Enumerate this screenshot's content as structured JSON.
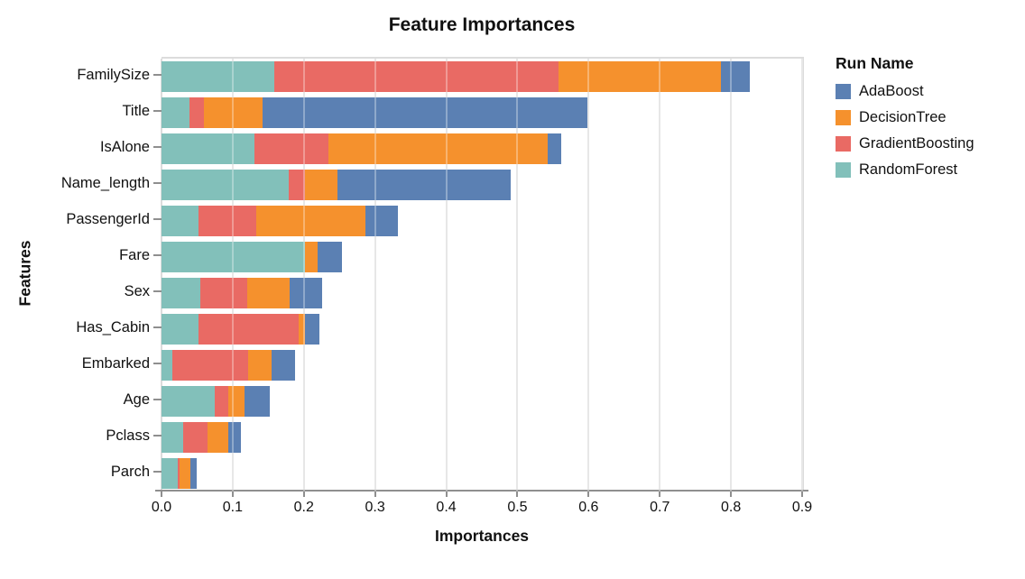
{
  "title": "Feature Importances",
  "x_axis": {
    "title": "Importances",
    "tick_labels": [
      "0.0",
      "0.1",
      "0.2",
      "0.3",
      "0.4",
      "0.5",
      "0.6",
      "0.7",
      "0.8",
      "0.9"
    ],
    "max": 0.9
  },
  "y_axis": {
    "title": "Features"
  },
  "legend": {
    "title": "Run Name",
    "entries": [
      {
        "label": "AdaBoost",
        "color": "#5b80b3"
      },
      {
        "label": "DecisionTree",
        "color": "#f5912d"
      },
      {
        "label": "GradientBoosting",
        "color": "#e96a64"
      },
      {
        "label": "RandomForest",
        "color": "#82c0ba"
      }
    ]
  },
  "chart_data": {
    "type": "bar",
    "orientation": "horizontal",
    "stacked": true,
    "title": "Feature Importances",
    "xlabel": "Importances",
    "ylabel": "Features",
    "xlim": [
      0,
      0.9
    ],
    "grid": true,
    "legend_position": "right",
    "categories": [
      "FamilySize",
      "Title",
      "IsAlone",
      "Name_length",
      "PassengerId",
      "Fare",
      "Sex",
      "Has_Cabin",
      "Embarked",
      "Age",
      "Pclass",
      "Parch"
    ],
    "stack_order_note": "series listed in left-to-right stacking order",
    "series": [
      {
        "name": "RandomForest",
        "color": "#82c0ba",
        "values": [
          0.159,
          0.039,
          0.131,
          0.179,
          0.052,
          0.202,
          0.055,
          0.052,
          0.015,
          0.075,
          0.03,
          0.023
        ]
      },
      {
        "name": "GradientBoosting",
        "color": "#e96a64",
        "values": [
          0.399,
          0.02,
          0.103,
          0.023,
          0.081,
          0.0,
          0.065,
          0.141,
          0.107,
          0.019,
          0.035,
          0.002
        ]
      },
      {
        "name": "DecisionTree",
        "color": "#f5912d",
        "values": [
          0.228,
          0.083,
          0.309,
          0.045,
          0.153,
          0.017,
          0.06,
          0.009,
          0.033,
          0.023,
          0.029,
          0.016
        ]
      },
      {
        "name": "AdaBoost",
        "color": "#5b80b3",
        "values": [
          0.04,
          0.456,
          0.018,
          0.244,
          0.046,
          0.034,
          0.046,
          0.02,
          0.033,
          0.035,
          0.017,
          0.009
        ]
      }
    ],
    "totals": [
      0.826,
      0.598,
      0.561,
      0.491,
      0.332,
      0.253,
      0.226,
      0.222,
      0.188,
      0.152,
      0.111,
      0.05
    ]
  }
}
